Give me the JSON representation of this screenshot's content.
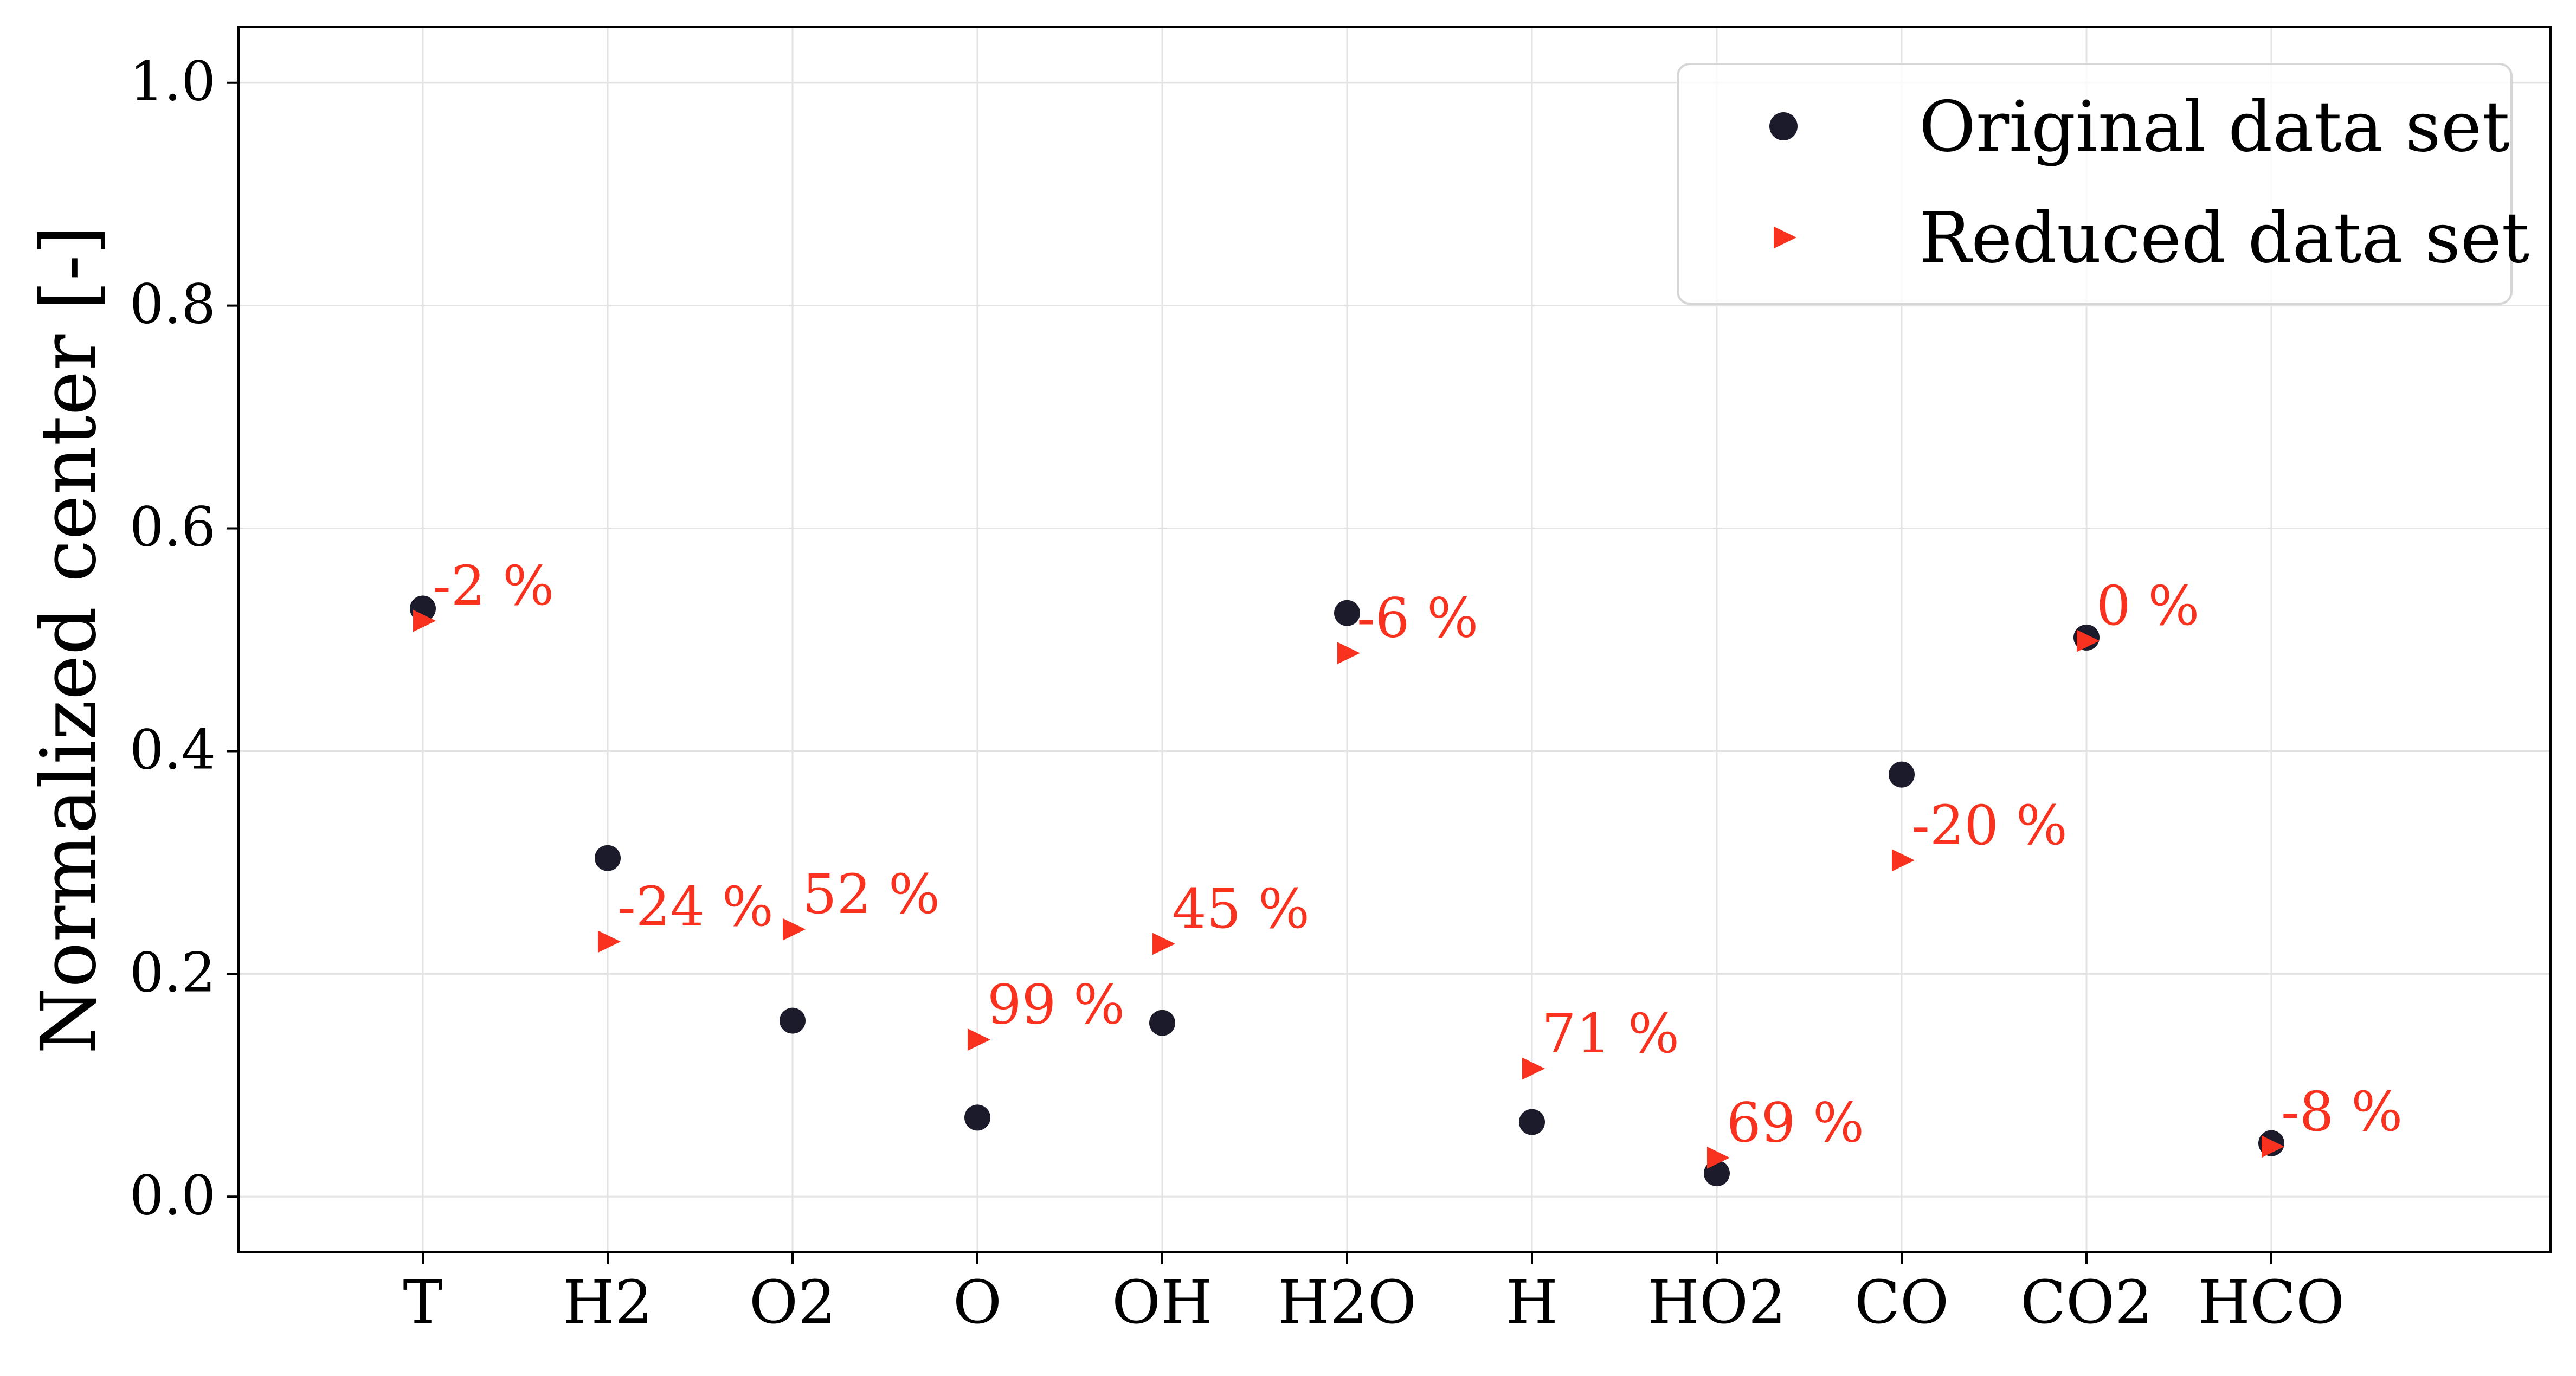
{
  "chart_data": {
    "type": "scatter",
    "title": "",
    "xlabel": "",
    "ylabel": "Normalized center [-]",
    "categories": [
      "T",
      "H2",
      "O2",
      "O",
      "OH",
      "H2O",
      "H",
      "HO2",
      "CO",
      "CO2",
      "HCO"
    ],
    "y_ticks": [
      "0.0",
      "0.2",
      "0.4",
      "0.6",
      "0.8",
      "1.0"
    ],
    "ylim": [
      -0.05,
      1.05
    ],
    "grid": true,
    "legend_position": "top-right",
    "series": [
      {
        "name": "Original data set",
        "marker": "circle",
        "color": "#1b1b2b",
        "values": [
          0.528,
          0.304,
          0.158,
          0.071,
          0.156,
          0.524,
          0.067,
          0.021,
          0.379,
          0.502,
          0.048
        ]
      },
      {
        "name": "Reduced data set",
        "marker": "triangle-right",
        "color": "#f8321e",
        "values": [
          0.517,
          0.229,
          0.24,
          0.141,
          0.227,
          0.488,
          0.115,
          0.035,
          0.302,
          0.499,
          0.045
        ]
      }
    ],
    "annotations": [
      "-2 %",
      "-24 %",
      "52 %",
      "99 %",
      "45 %",
      "-6 %",
      "71 %",
      "69 %",
      "-20 %",
      "0 %",
      "-8 %"
    ]
  }
}
